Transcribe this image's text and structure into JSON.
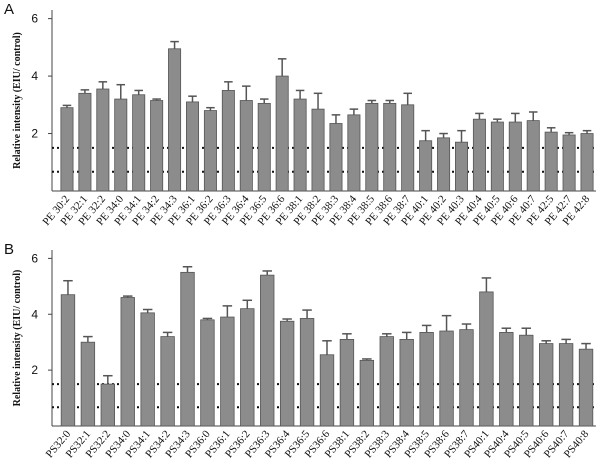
{
  "chart_data": [
    {
      "type": "bar",
      "panel_label": "A",
      "y_label": "Relative intensity (EIU/ control)",
      "categories": [
        "PE 30:2",
        "PE 32:1",
        "PE 32:2",
        "PE 34:0",
        "PE 34:1",
        "PE 34:2",
        "PE 34:3",
        "PE 36:1",
        "PE 36:2",
        "PE 36:3",
        "PE 36:4",
        "PE 36:5",
        "PE 36:6",
        "PE 38:1",
        "PE 38:2",
        "PE 38:3",
        "PE 38:4",
        "PE 38:5",
        "PE 38:6",
        "PE 38:7",
        "PE 40:1",
        "PE 40:2",
        "PE 40:3",
        "PE 40:4",
        "PE 40:5",
        "PE 40:6",
        "PE 40:7",
        "PE 42:5",
        "PE 42:7",
        "PE 42:8"
      ],
      "values": [
        2.9,
        3.4,
        3.55,
        3.2,
        3.35,
        3.15,
        4.95,
        3.1,
        2.8,
        3.5,
        3.15,
        3.05,
        4.0,
        3.2,
        2.85,
        2.35,
        2.65,
        3.05,
        3.05,
        3.0,
        1.75,
        1.85,
        1.7,
        2.5,
        2.4,
        2.4,
        2.45,
        2.05,
        1.95,
        2.0
      ],
      "errors": [
        0.08,
        0.12,
        0.25,
        0.5,
        0.15,
        0.05,
        0.25,
        0.2,
        0.1,
        0.3,
        0.5,
        0.15,
        0.6,
        0.3,
        0.55,
        0.3,
        0.2,
        0.1,
        0.1,
        0.4,
        0.35,
        0.15,
        0.4,
        0.2,
        0.1,
        0.3,
        0.3,
        0.15,
        0.08,
        0.1
      ],
      "color": "#8c8c8c",
      "ylim": [
        0,
        6.3
      ],
      "yticks": [
        2,
        4,
        6
      ],
      "reference_lines": [
        1.5,
        0.67
      ]
    },
    {
      "type": "bar",
      "panel_label": "B",
      "y_label": "Relative intensity (EIU/ control)",
      "categories": [
        "PS32:0",
        "PS32:1",
        "PS32:2",
        "PS34:0",
        "PS34:1",
        "PS34:2",
        "PS34:3",
        "PS36:0",
        "PS36:1",
        "PS36:2",
        "PS36:3",
        "PS36:4",
        "PS36:5",
        "PS36:6",
        "PS38:1",
        "PS38:2",
        "PS38:3",
        "PS38:4",
        "PS38:5",
        "PS38:6",
        "PS38:7",
        "PS40:1",
        "PS40:4",
        "PS40:5",
        "PS40:6",
        "PS40:7",
        "PS40:8"
      ],
      "values": [
        4.7,
        3.0,
        1.5,
        4.6,
        4.05,
        3.2,
        5.5,
        3.8,
        3.9,
        4.2,
        5.4,
        3.75,
        3.85,
        2.55,
        3.1,
        2.35,
        3.2,
        3.1,
        3.35,
        3.4,
        3.45,
        4.8,
        3.35,
        3.25,
        2.95,
        2.95,
        2.75
      ],
      "errors": [
        0.5,
        0.2,
        0.3,
        0.05,
        0.12,
        0.15,
        0.2,
        0.05,
        0.4,
        0.3,
        0.15,
        0.08,
        0.3,
        0.5,
        0.2,
        0.05,
        0.1,
        0.25,
        0.25,
        0.55,
        0.2,
        0.5,
        0.15,
        0.25,
        0.1,
        0.15,
        0.2
      ],
      "color": "#8c8c8c",
      "ylim": [
        0,
        6.3
      ],
      "yticks": [
        2,
        4,
        6
      ],
      "reference_lines": [
        1.5,
        0.67
      ]
    }
  ]
}
